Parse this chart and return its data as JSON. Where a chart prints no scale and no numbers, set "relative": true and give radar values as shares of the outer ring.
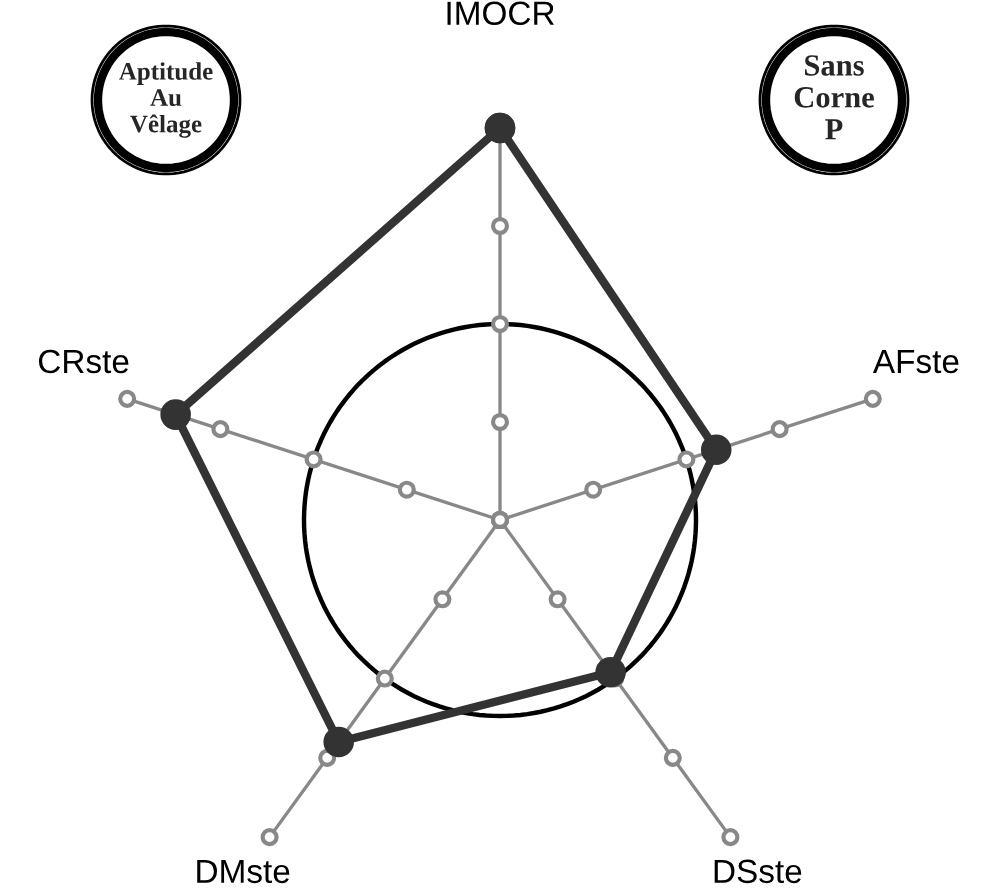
{
  "chart_data": {
    "type": "radar",
    "relative": true,
    "categories": [
      "IMOCR",
      "AFste",
      "DSste",
      "DMste",
      "CRste"
    ],
    "series": [
      {
        "color": "#333333",
        "values": [
          1.0,
          0.58,
          0.48,
          0.7,
          0.87
        ]
      }
    ],
    "marker": "circle",
    "line_style": "solid",
    "grid": true,
    "annotations": [
      "Aptitude\nAu\nVêlage",
      "Sans\nCorne\nP"
    ]
  }
}
